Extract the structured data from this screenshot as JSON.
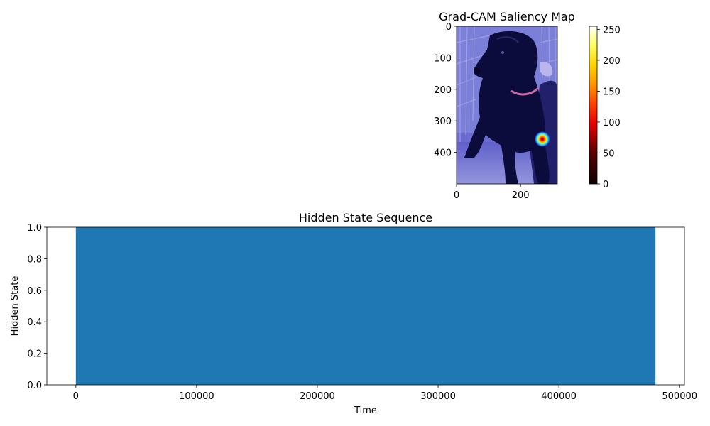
{
  "chart_data": [
    {
      "type": "heatmap",
      "title": "Grad-CAM Saliency Map",
      "image": {
        "description": "black dog photo with blue-tinted overlay",
        "width": 315,
        "height": 500
      },
      "x_ticks": [
        "0",
        "200"
      ],
      "x_tick_values": [
        0,
        200
      ],
      "y_ticks": [
        "0",
        "100",
        "200",
        "300",
        "400"
      ],
      "y_tick_values": [
        0,
        100,
        200,
        300,
        400
      ],
      "xlim": [
        0,
        315
      ],
      "ylim": [
        500,
        0
      ],
      "hotspot": {
        "x": 268,
        "y": 358,
        "radius": 24
      },
      "colorbar": {
        "colormap": "hot",
        "range": [
          0,
          255
        ],
        "ticks": [
          "0",
          "50",
          "100",
          "150",
          "200",
          "250"
        ],
        "tick_values": [
          0,
          50,
          100,
          150,
          200,
          250
        ]
      }
    },
    {
      "type": "bar",
      "title": "Hidden State Sequence",
      "xlabel": "Time",
      "ylabel": "Hidden State",
      "x_ticks": [
        "0",
        "100000",
        "200000",
        "300000",
        "400000",
        "500000"
      ],
      "x_tick_values": [
        0,
        100000,
        200000,
        300000,
        400000,
        500000
      ],
      "y_ticks": [
        "0.0",
        "0.2",
        "0.4",
        "0.6",
        "0.8",
        "1.0"
      ],
      "y_tick_values": [
        0,
        0.2,
        0.4,
        0.6,
        0.8,
        1.0
      ],
      "xlim": [
        -24000,
        504000
      ],
      "ylim": [
        0,
        1
      ],
      "color": "#1f77b4",
      "series": [
        {
          "x_start": 0,
          "x_end": 480000,
          "value": 1.0
        }
      ]
    }
  ]
}
